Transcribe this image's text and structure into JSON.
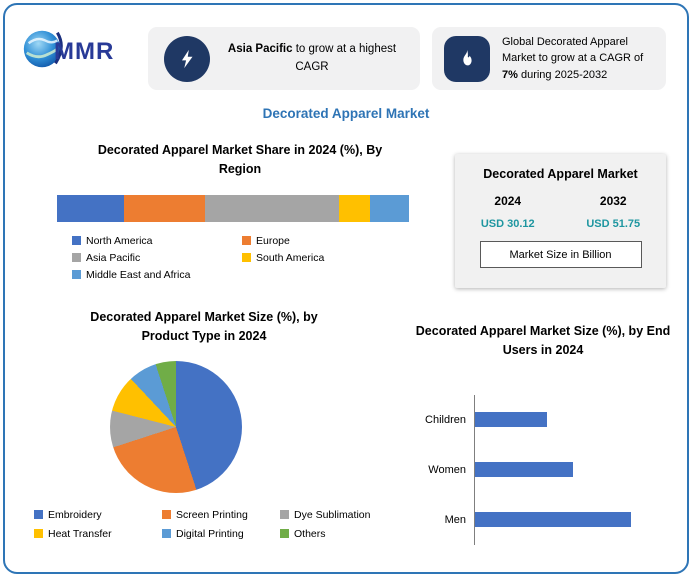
{
  "theme": {
    "border_blue": "#2E75B6",
    "accent_blue": "#2E74B5",
    "teal": "#1E96A0",
    "navy": "#1F3864",
    "panel_gray": "#F1F1F2",
    "axis_gray": "#7F7F7F"
  },
  "logo": {
    "text": "MMR"
  },
  "callouts": [
    {
      "icon": "lightning-bolt-icon",
      "bold": "Asia Pacific",
      "after": " to grow at a highest CAGR"
    },
    {
      "icon": "flame-icon",
      "before": "Global Decorated Apparel Market to grow at a CAGR of ",
      "bold": "7%",
      "after": " during 2025-2032"
    }
  ],
  "main_title": "Decorated Apparel Market",
  "market_card": {
    "title": "Decorated Apparel Market",
    "year_start": "2024",
    "year_end": "2032",
    "value_start": "USD 30.12",
    "value_end": "USD 51.75",
    "unit_label": "Market Size in Billion"
  },
  "chart_data": [
    {
      "type": "bar",
      "subtype": "stacked-horizontal",
      "title": "Decorated Apparel Market Share in 2024 (%), By Region",
      "categories": [
        "North America",
        "Europe",
        "Asia Pacific",
        "South America",
        "Middle East and Africa"
      ],
      "values": [
        19,
        23,
        38,
        9,
        11
      ],
      "colors": [
        "#4472C4",
        "#ED7D31",
        "#A5A5A5",
        "#FFC000",
        "#5B9BD5"
      ],
      "unit": "%",
      "legend_position": "bottom"
    },
    {
      "type": "pie",
      "title": "Decorated Apparel Market Size (%), by Product Type in 2024",
      "categories": [
        "Embroidery",
        "Screen Printing",
        "Dye Sublimation",
        "Heat Transfer",
        "Digital Printing",
        "Others"
      ],
      "values": [
        45,
        25,
        9,
        9,
        7,
        5
      ],
      "colors": [
        "#4472C4",
        "#ED7D31",
        "#A5A5A5",
        "#FFC000",
        "#5B9BD5",
        "#70AD47"
      ],
      "unit": "%",
      "legend_position": "bottom"
    },
    {
      "type": "bar",
      "subtype": "horizontal",
      "title": "Decorated Apparel Market Size (%), by End Users in 2024",
      "categories": [
        "Children",
        "Women",
        "Men"
      ],
      "values": [
        22,
        30,
        48
      ],
      "color": "#4472C4",
      "unit": "%",
      "xlim": [
        0,
        50
      ],
      "legend_position": "none"
    }
  ]
}
